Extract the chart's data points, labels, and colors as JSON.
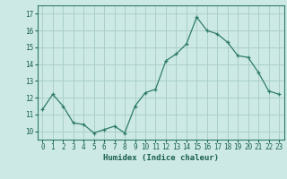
{
  "x": [
    0,
    1,
    2,
    3,
    4,
    5,
    6,
    7,
    8,
    9,
    10,
    11,
    12,
    13,
    14,
    15,
    16,
    17,
    18,
    19,
    20,
    21,
    22,
    23
  ],
  "y": [
    11.3,
    12.2,
    11.5,
    10.5,
    10.4,
    9.9,
    10.1,
    10.3,
    9.9,
    11.5,
    12.3,
    12.5,
    14.2,
    14.6,
    15.2,
    16.8,
    16.0,
    15.8,
    15.3,
    14.5,
    14.4,
    13.5,
    12.4,
    12.2
  ],
  "line_color": "#2e7b6a",
  "marker": "+",
  "bg_color": "#cce9e5",
  "grid_color": "#aacfca",
  "xlabel": "Humidex (Indice chaleur)",
  "xlabel_color": "#1a5f50",
  "ylim": [
    9.5,
    17.5
  ],
  "xlim": [
    -0.5,
    23.5
  ],
  "yticks": [
    10,
    11,
    12,
    13,
    14,
    15,
    16,
    17
  ],
  "xticks": [
    0,
    1,
    2,
    3,
    4,
    5,
    6,
    7,
    8,
    9,
    10,
    11,
    12,
    13,
    14,
    15,
    16,
    17,
    18,
    19,
    20,
    21,
    22,
    23
  ],
  "xtick_labels": [
    "0",
    "1",
    "2",
    "3",
    "4",
    "5",
    "6",
    "7",
    "8",
    "9",
    "10",
    "11",
    "12",
    "13",
    "14",
    "15",
    "16",
    "17",
    "18",
    "19",
    "20",
    "21",
    "22",
    "23"
  ],
  "tick_color": "#1a5f50",
  "spine_color": "#2e7b6a",
  "tick_fontsize": 5.5,
  "xlabel_fontsize": 6.5,
  "linewidth": 0.9,
  "markersize": 3.5,
  "markeredgewidth": 0.9
}
